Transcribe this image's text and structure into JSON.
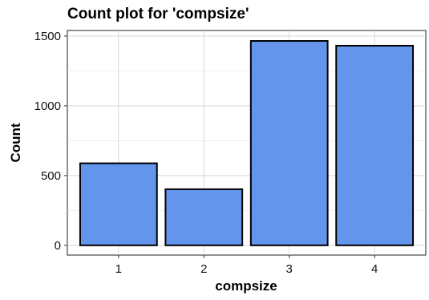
{
  "chart_data": {
    "type": "bar",
    "title": "Count plot for 'compsize'",
    "xlabel": "compsize",
    "ylabel": "Count",
    "categories": [
      "1",
      "2",
      "3",
      "4"
    ],
    "values": [
      588,
      402,
      1465,
      1431
    ],
    "ylim": [
      -70,
      1540
    ],
    "yticks": [
      0,
      500,
      1000,
      1500
    ],
    "grid": true,
    "bar_color": "#6495ED",
    "bar_edge_color": "#000000"
  }
}
